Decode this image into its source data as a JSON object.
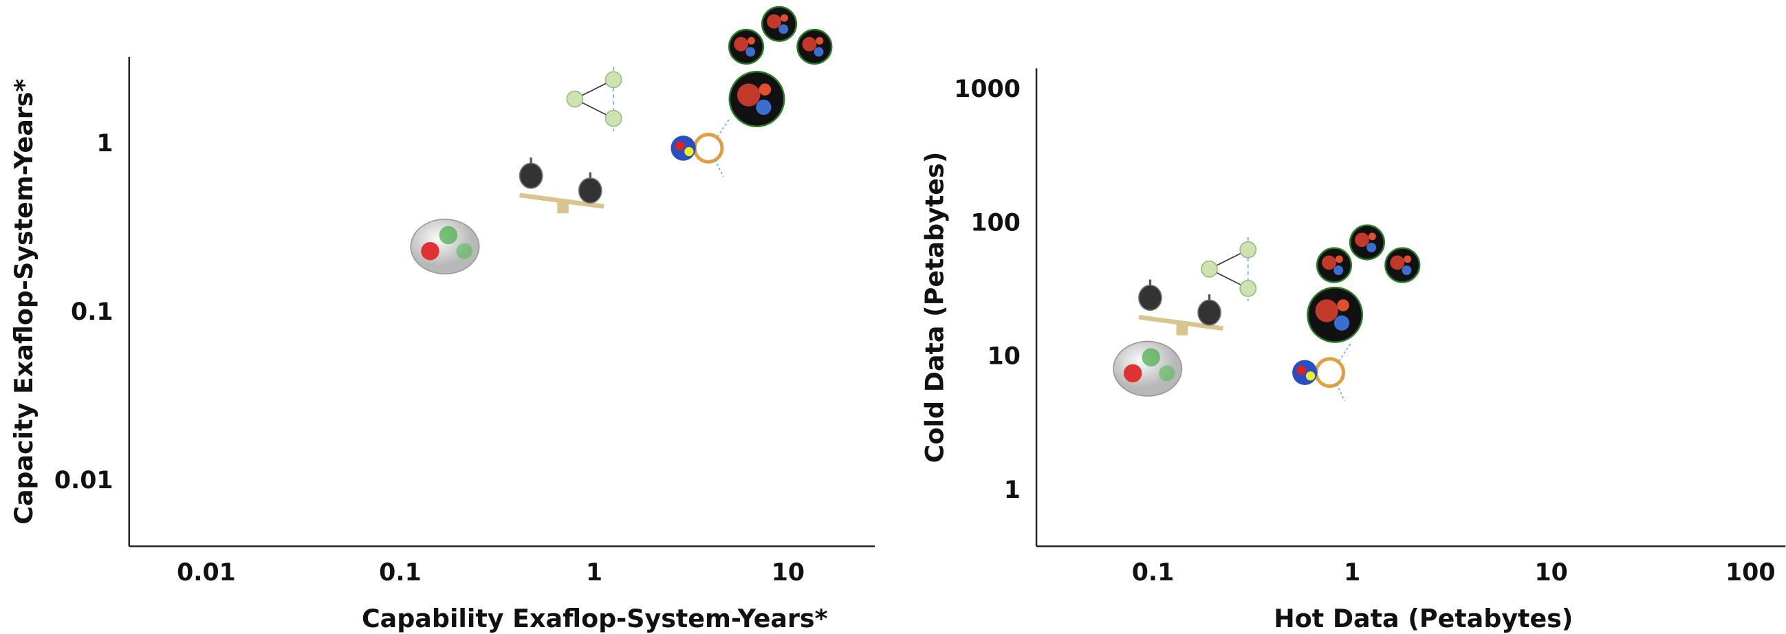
{
  "chart_data": [
    {
      "type": "scatter",
      "xscale": "log",
      "yscale": "log",
      "x_label": "Capability Exaflop-System-Years*",
      "y_label": "Capacity Exaflop-System-Years*",
      "xlim": [
        0.004,
        28
      ],
      "ylim": [
        0.004,
        3.2
      ],
      "xticks": [
        0.01,
        0.1,
        1,
        10
      ],
      "yticks": [
        0.01,
        0.1,
        1
      ],
      "series": [
        {
          "x": [
            0.17,
            0.69,
            1.0,
            3.3,
            6.9,
            9
          ],
          "values": [
            0.24,
            0.5,
            1.8,
            0.92,
            1.8,
            4.1
          ]
        }
      ]
    },
    {
      "type": "scatter",
      "xscale": "log",
      "yscale": "log",
      "x_label": "Hot Data (Petabytes)",
      "y_label": "Cold Data (Petabytes)",
      "xlim": [
        0.026,
        150
      ],
      "ylim": [
        0.37,
        1400
      ],
      "xticks": [
        0.1,
        1,
        10,
        100
      ],
      "yticks": [
        1,
        10,
        100,
        1000
      ],
      "series": [
        {
          "x": [
            0.094,
            0.14,
            0.24,
            0.66,
            0.82,
            1.19
          ],
          "values": [
            7.9,
            20,
            44,
            7.4,
            20,
            54
          ]
        }
      ]
    }
  ]
}
